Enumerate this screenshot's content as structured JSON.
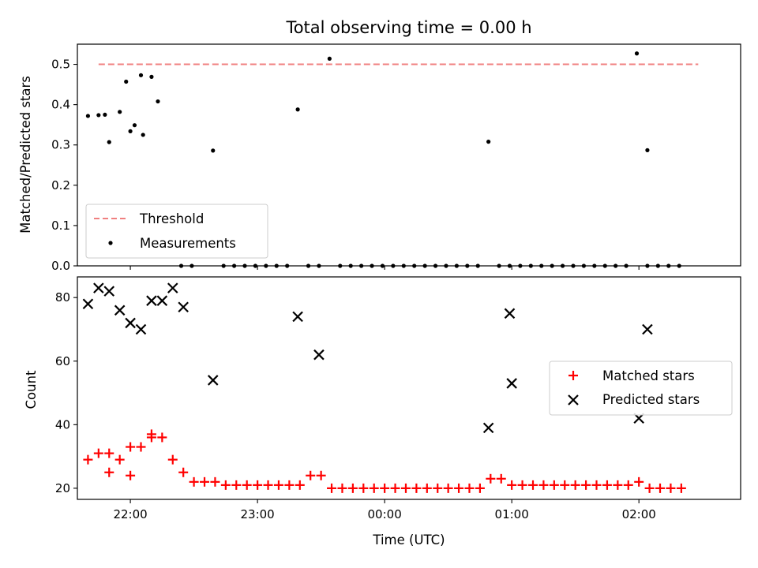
{
  "figure": {
    "title": "Total observing time = 0.00 h",
    "xlabel": "Time (UTC)"
  },
  "chart_data": [
    {
      "type": "scatter",
      "panel": "top",
      "ylabel": "Matched/Predicted stars",
      "x_axis": "time",
      "xlim": [
        "21:35",
        "02:48"
      ],
      "xticks": [
        "22:00",
        "23:00",
        "00:00",
        "01:00",
        "02:00"
      ],
      "ylim": [
        0,
        0.55
      ],
      "yticks": [
        0.0,
        0.1,
        0.2,
        0.3,
        0.4,
        0.5
      ],
      "ytick_labels": [
        "0.0",
        "0.1",
        "0.2",
        "0.3",
        "0.4",
        "0.5"
      ],
      "legend": "lower-left",
      "grid": false,
      "series": [
        {
          "name": "Threshold",
          "kind": "dashed-line",
          "color": "#f08080",
          "x": [
            "21:45",
            "02:28"
          ],
          "y": [
            0.5,
            0.5
          ]
        },
        {
          "name": "Measurements",
          "kind": "dots",
          "color": "#000000",
          "x": [
            "21:45",
            "21:50",
            "21:55",
            "22:00",
            "22:05",
            "22:10",
            "21:40",
            "21:48",
            "21:58",
            "22:02",
            "22:06",
            "22:13",
            "22:24",
            "22:29",
            "22:39",
            "22:44",
            "22:49",
            "22:54",
            "22:59",
            "23:04",
            "23:09",
            "23:14",
            "23:24",
            "23:34",
            "23:39",
            "23:44",
            "23:49",
            "23:54",
            "23:59",
            "00:04",
            "00:09",
            "00:14",
            "00:19",
            "00:24",
            "00:29",
            "00:34",
            "00:39",
            "00:44",
            "00:54",
            "00:59",
            "01:04",
            "01:09",
            "01:14",
            "01:19",
            "01:24",
            "01:29",
            "01:34",
            "01:39",
            "01:44",
            "01:49",
            "01:54",
            "01:59",
            "02:04",
            "02:09",
            "02:14",
            "02:19",
            "23:19",
            "23:29",
            "00:49",
            "02:04"
          ],
          "y": [
            0.374,
            0.307,
            0.382,
            0.334,
            0.473,
            0.469,
            0.372,
            0.375,
            0.457,
            0.349,
            0.325,
            0.408,
            0.0,
            0.0,
            0.286,
            0.0,
            0.0,
            0.0,
            0.0,
            0.0,
            0.0,
            0.0,
            0.0,
            0.514,
            0.0,
            0.0,
            0.0,
            0.0,
            0.0,
            0.0,
            0.0,
            0.0,
            0.0,
            0.0,
            0.0,
            0.0,
            0.0,
            0.0,
            0.0,
            0.0,
            0.0,
            0.0,
            0.0,
            0.0,
            0.0,
            0.0,
            0.0,
            0.0,
            0.0,
            0.0,
            0.0,
            0.527,
            0.0,
            0.0,
            0.0,
            0.0,
            0.388,
            0.0,
            0.308,
            0.287
          ]
        }
      ]
    },
    {
      "type": "scatter",
      "panel": "bottom",
      "ylabel": "Count",
      "x_axis": "time",
      "xlim": [
        "21:35",
        "02:48"
      ],
      "xticks": [
        "22:00",
        "23:00",
        "00:00",
        "01:00",
        "02:00"
      ],
      "ylim": [
        16.5,
        86.5
      ],
      "yticks": [
        20,
        40,
        60,
        80
      ],
      "ytick_labels": [
        "20",
        "40",
        "60",
        "80"
      ],
      "legend": "center-right",
      "grid": false,
      "series": [
        {
          "name": "Matched stars",
          "marker": "plus",
          "color": "#ff0000",
          "x": [
            "21:45",
            "21:50",
            "21:55",
            "22:00",
            "22:05",
            "22:10",
            "22:15",
            "22:20",
            "22:25",
            "22:30",
            "22:35",
            "22:40",
            "22:45",
            "22:50",
            "22:55",
            "23:00",
            "23:05",
            "23:10",
            "23:15",
            "23:20",
            "23:25",
            "23:30",
            "23:35",
            "23:40",
            "23:45",
            "23:50",
            "23:55",
            "00:00",
            "00:05",
            "00:10",
            "00:15",
            "00:20",
            "00:25",
            "00:30",
            "00:35",
            "00:40",
            "00:45",
            "00:50",
            "00:55",
            "01:00",
            "01:05",
            "01:10",
            "01:15",
            "01:20",
            "01:25",
            "01:30",
            "01:35",
            "01:40",
            "01:45",
            "01:50",
            "01:55",
            "02:00",
            "02:05",
            "02:10",
            "02:15",
            "02:20",
            "21:40",
            "21:50",
            "22:00",
            "22:10"
          ],
          "y": [
            31,
            25,
            29,
            24,
            33,
            37,
            36,
            29,
            25,
            22,
            22,
            22,
            21,
            21,
            21,
            21,
            21,
            21,
            21,
            21,
            24,
            24,
            20,
            20,
            20,
            20,
            20,
            20,
            20,
            20,
            20,
            20,
            20,
            20,
            20,
            20,
            20,
            23,
            23,
            21,
            21,
            21,
            21,
            21,
            21,
            21,
            21,
            21,
            21,
            21,
            21,
            22,
            20,
            20,
            20,
            20,
            29,
            31,
            33,
            36
          ]
        },
        {
          "name": "Predicted stars",
          "marker": "x",
          "color": "#000000",
          "x": [
            "21:40",
            "21:45",
            "21:50",
            "21:55",
            "22:00",
            "22:05",
            "22:10",
            "22:15",
            "22:20",
            "22:25",
            "22:39",
            "23:19",
            "23:29",
            "00:49",
            "00:59",
            "01:00",
            "02:00",
            "02:04"
          ],
          "y": [
            78,
            83,
            82,
            76,
            72,
            70,
            79,
            79,
            83,
            77,
            54,
            74,
            62,
            39,
            75,
            53,
            42,
            70
          ]
        }
      ]
    }
  ]
}
